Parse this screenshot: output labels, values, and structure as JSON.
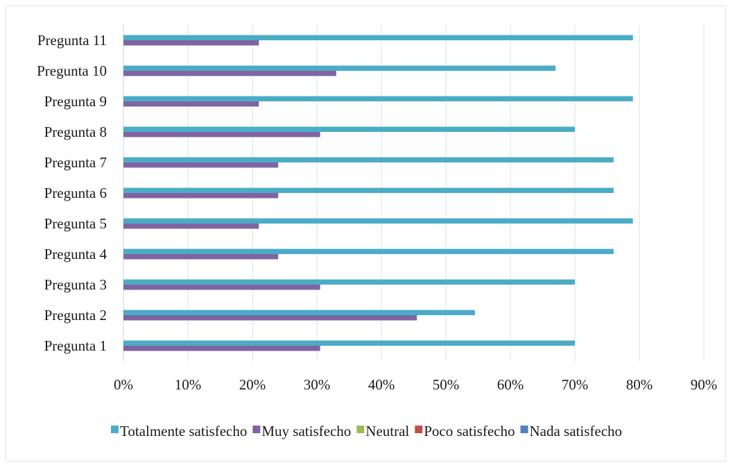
{
  "chart_data": {
    "type": "bar",
    "orientation": "horizontal",
    "categories": [
      "Pregunta 1",
      "Pregunta 2",
      "Pregunta 3",
      "Pregunta 4",
      "Pregunta 5",
      "Pregunta 6",
      "Pregunta 7",
      "Pregunta 8",
      "Pregunta 9",
      "Pregunta 10",
      "Pregunta 11"
    ],
    "series": [
      {
        "name": "Totalmente satisfecho",
        "color": "#4bacc6",
        "values": [
          70,
          54.5,
          70,
          76,
          79,
          76,
          76,
          70,
          79,
          67,
          79
        ]
      },
      {
        "name": "Muy satisfecho",
        "color": "#8064a2",
        "values": [
          30.5,
          45.5,
          30.5,
          24,
          21,
          24,
          24,
          30.5,
          21,
          33,
          21
        ]
      },
      {
        "name": "Neutral",
        "color": "#9bbb59",
        "values": [
          0,
          0,
          0,
          0,
          0,
          0,
          0,
          0,
          0,
          0,
          0
        ]
      },
      {
        "name": "Poco satisfecho",
        "color": "#c0504d",
        "values": [
          0,
          0,
          0,
          0,
          0,
          0,
          0,
          0,
          0,
          0,
          0
        ]
      },
      {
        "name": "Nada satisfecho",
        "color": "#4f81bd",
        "values": [
          0,
          0,
          0,
          0,
          0,
          0,
          0,
          0,
          0,
          0,
          0
        ]
      }
    ],
    "xlim": [
      0,
      90
    ],
    "xticks": [
      0,
      10,
      20,
      30,
      40,
      50,
      60,
      70,
      80,
      90
    ],
    "xtick_labels": [
      "0%",
      "10%",
      "20%",
      "30%",
      "40%",
      "50%",
      "60%",
      "70%",
      "80%",
      "90%"
    ],
    "grid": true,
    "legend_position": "bottom",
    "title": "",
    "xlabel": "",
    "ylabel": ""
  }
}
